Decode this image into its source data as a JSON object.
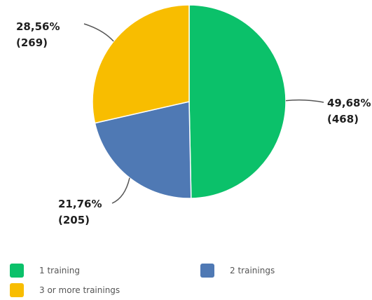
{
  "chart_data": {
    "type": "pie",
    "start_angle_deg": 0,
    "direction": "clockwise",
    "slices": [
      {
        "label": "1 training",
        "percent": 49.68,
        "percent_label": "49,68%",
        "count": 468,
        "count_label": "(468)",
        "color": "#0bc16a"
      },
      {
        "label": "2 trainings",
        "percent": 21.76,
        "percent_label": "21,76%",
        "count": 205,
        "count_label": "(205)",
        "color": "#4f79b4"
      },
      {
        "label": "3 or more trainings",
        "percent": 28.56,
        "percent_label": "28,56%",
        "count": 269,
        "count_label": "(269)",
        "color": "#f8bd00"
      }
    ],
    "legend_position": "bottom"
  }
}
